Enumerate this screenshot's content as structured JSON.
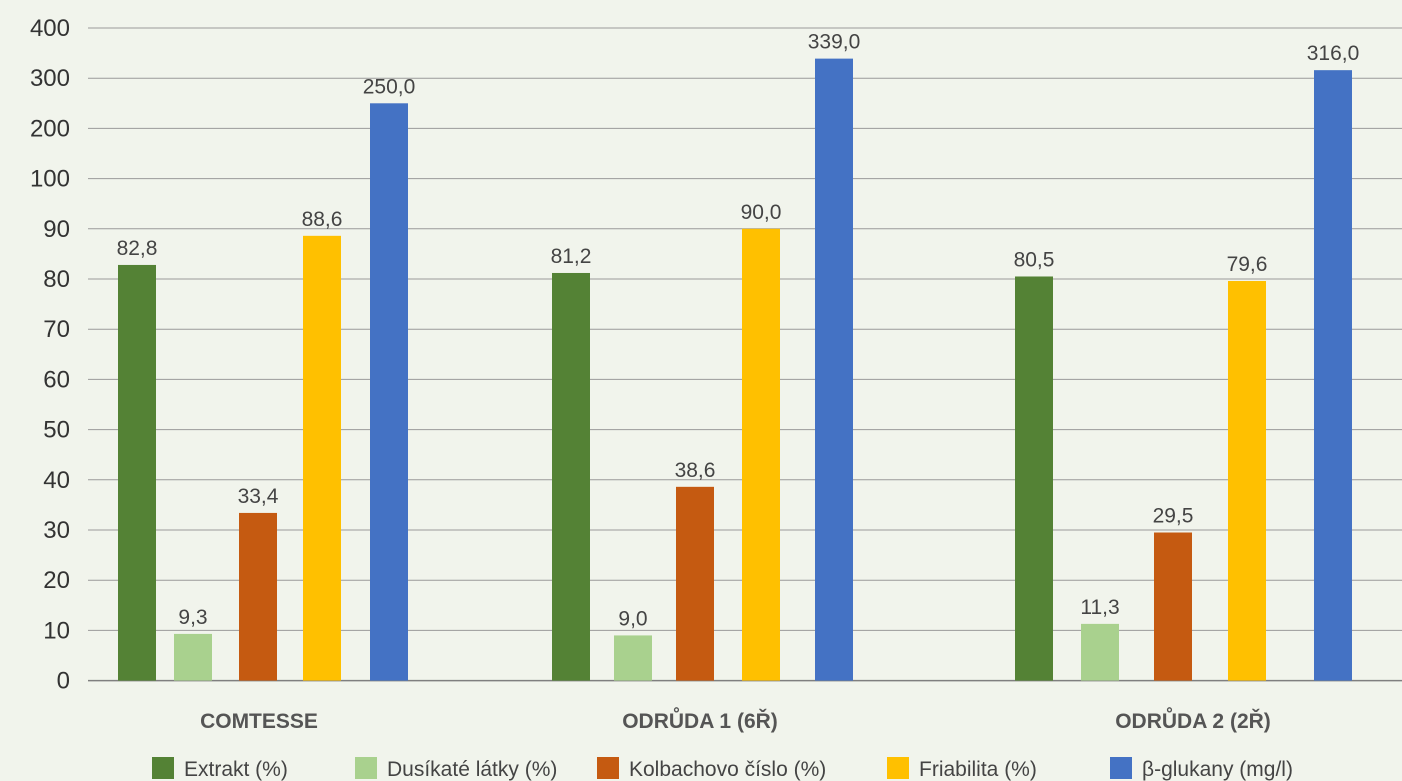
{
  "chart_data": {
    "type": "bar",
    "title": "",
    "xlabel": "",
    "ylabel": "",
    "y_ticks": [
      "0",
      "10",
      "20",
      "30",
      "40",
      "50",
      "60",
      "70",
      "80",
      "90",
      "100",
      "200",
      "300",
      "400"
    ],
    "y_scale": "broken: linear 0–90 in steps of 10, then 100–400 in steps of 100",
    "grid": true,
    "legend_position": "bottom",
    "categories": [
      "COMTESSE",
      "ODRŮDA 1 (6Ř)",
      "ODRŮDA 2 (2Ř)"
    ],
    "series": [
      {
        "name": "Extrakt (%)",
        "color": "#548235",
        "values": [
          82.8,
          81.2,
          80.5
        ],
        "labels": [
          "82,8",
          "81,2",
          "80,5"
        ]
      },
      {
        "name": "Dusíkaté látky (%)",
        "color": "#a9d18e",
        "values": [
          9.3,
          9.0,
          11.3
        ],
        "labels": [
          "9,3",
          "9,0",
          "11,3"
        ]
      },
      {
        "name": "Kolbachovo číslo (%)",
        "color": "#c55a11",
        "values": [
          33.4,
          38.6,
          29.5
        ],
        "labels": [
          "33,4",
          "38,6",
          "29,5"
        ]
      },
      {
        "name": "Friabilita (%)",
        "color": "#ffc000",
        "values": [
          88.6,
          90.0,
          79.6
        ],
        "labels": [
          "88,6",
          "90,0",
          "79,6"
        ]
      },
      {
        "name": "β-glukany (mg/l)",
        "color": "#4472c4",
        "values": [
          250.0,
          339.0,
          316.0
        ],
        "labels": [
          "250,0",
          "339,0",
          "316,0"
        ]
      }
    ]
  }
}
